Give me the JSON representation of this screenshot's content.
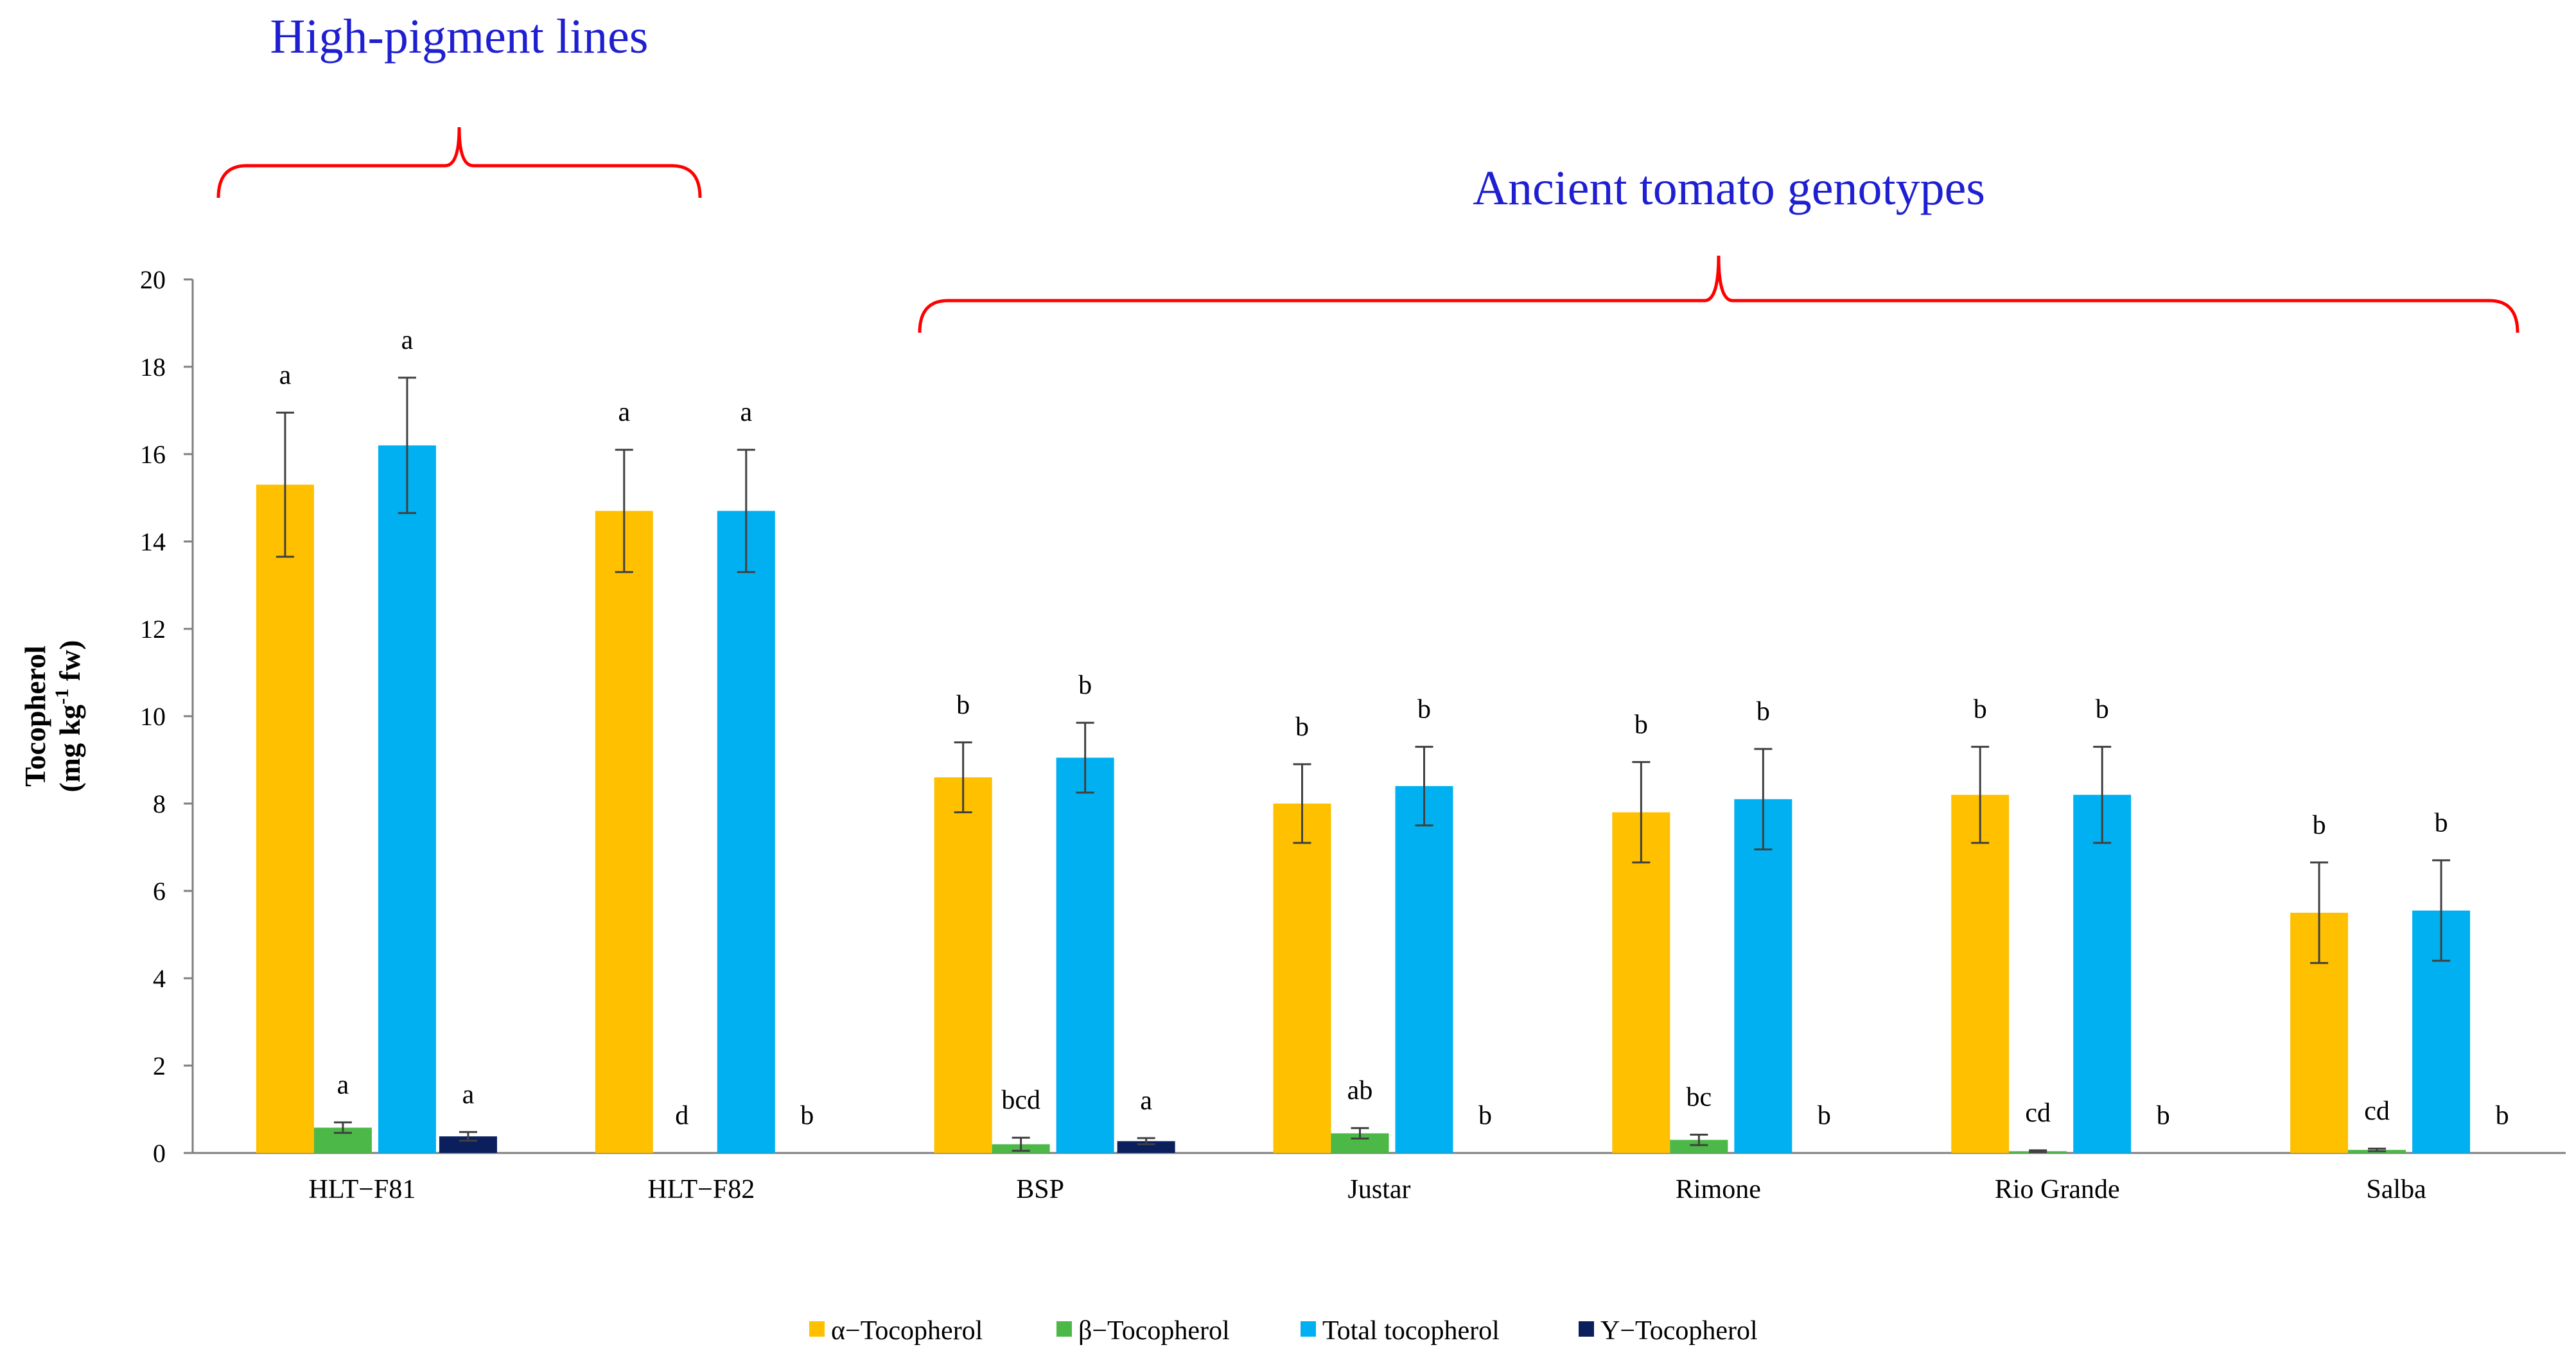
{
  "chart_data": {
    "type": "bar",
    "title": "",
    "xlabel": "",
    "ylabel_line1": "Tocopherol",
    "ylabel_line2": "(mg kg",
    "ylabel_sup": "-1",
    "ylabel_line2_tail": " fw)",
    "ylim": [
      0,
      20
    ],
    "yticks": [
      "0",
      "2",
      "4",
      "6",
      "8",
      "10",
      "12",
      "14",
      "16",
      "18",
      "20"
    ],
    "categories": [
      "HLT−F81",
      "HLT−F82",
      "BSP",
      "Justar",
      "Rimone",
      "Rio Grande",
      "Salba"
    ],
    "series": [
      {
        "name": "α−Tocopherol",
        "color": "#FFC000",
        "values": [
          15.3,
          14.7,
          8.6,
          8.0,
          7.8,
          8.2,
          5.5
        ],
        "errors": [
          1.65,
          1.4,
          0.8,
          0.9,
          1.15,
          1.1,
          1.15
        ],
        "labels": [
          "a",
          "a",
          "b",
          "b",
          "b",
          "b",
          "b"
        ]
      },
      {
        "name": "β−Tocopherol",
        "color": "#4CB848",
        "values": [
          0.58,
          0.0,
          0.2,
          0.45,
          0.3,
          0.04,
          0.07
        ],
        "errors": [
          0.12,
          0.0,
          0.15,
          0.12,
          0.12,
          0.02,
          0.03
        ],
        "labels": [
          "a",
          "d",
          "bcd",
          "ab",
          "bc",
          "cd",
          "cd"
        ]
      },
      {
        "name": "Total tocopherol",
        "color": "#00B0F0",
        "values": [
          16.2,
          14.7,
          9.05,
          8.4,
          8.1,
          8.2,
          5.55
        ],
        "errors": [
          1.55,
          1.4,
          0.8,
          0.9,
          1.15,
          1.1,
          1.15
        ],
        "labels": [
          "a",
          "a",
          "b",
          "b",
          "b",
          "b",
          "b"
        ]
      },
      {
        "name": "Υ−Tocopherol",
        "color": "#0A1F5C",
        "values": [
          0.38,
          0.0,
          0.27,
          0.0,
          0.0,
          0.0,
          0.0
        ],
        "errors": [
          0.1,
          0.0,
          0.07,
          0.0,
          0.0,
          0.0,
          0.0
        ],
        "labels": [
          "a",
          "b",
          "a",
          "b",
          "b",
          "b",
          "b"
        ]
      }
    ],
    "legend_position": "bottom",
    "groups": [
      {
        "label": "High-pigment lines",
        "from_category": 0,
        "to_category": 1,
        "color": "#1f1fd2",
        "bracket_color": "#ff0000"
      },
      {
        "label": "Ancient tomato genotypes",
        "from_category": 2,
        "to_category": 6,
        "color": "#1f1fd2",
        "bracket_color": "#ff0000"
      }
    ]
  }
}
